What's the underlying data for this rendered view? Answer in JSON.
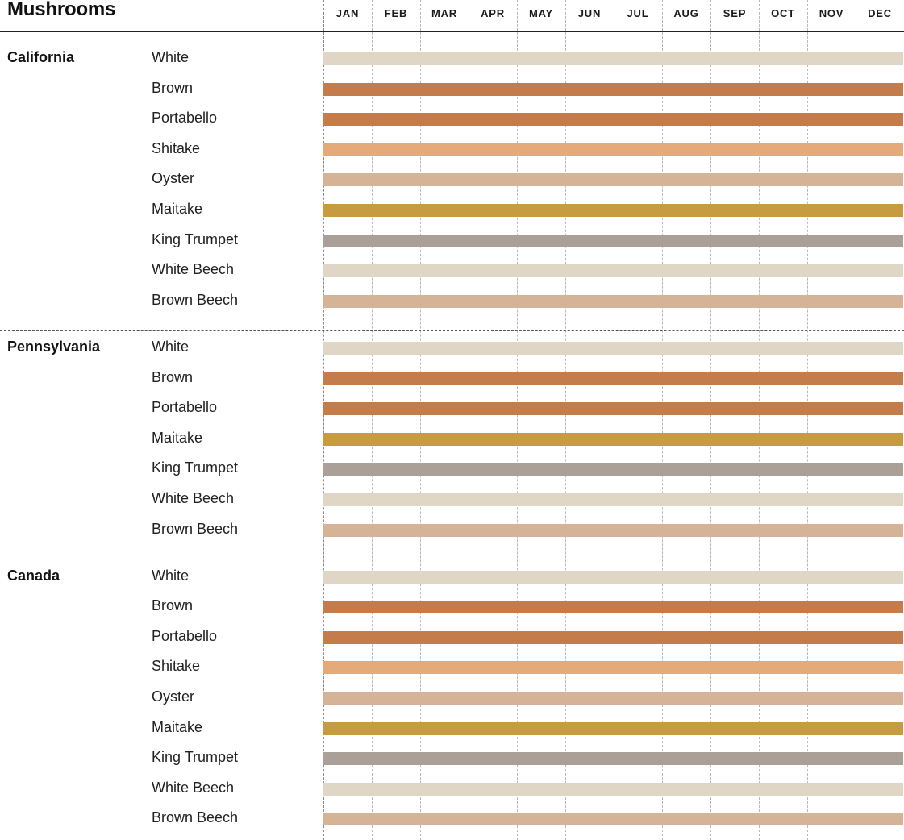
{
  "chart_data": {
    "type": "bar",
    "title": "Mushrooms",
    "months": [
      "JAN",
      "FEB",
      "MAR",
      "APR",
      "MAY",
      "JUN",
      "JUL",
      "AUG",
      "SEP",
      "OCT",
      "NOV",
      "DEC"
    ],
    "colors": {
      "White": "#e0d6c6",
      "Brown": "#c47c4a",
      "Portabello": "#c47c4a",
      "Shitake": "#e4aa7a",
      "Oyster": "#d5b397",
      "Maitake": "#c79b3f",
      "King Trumpet": "#aaa097",
      "White Beech": "#e0d6c6",
      "Brown Beech": "#d5b397"
    },
    "regions": [
      {
        "name": "California",
        "products": [
          {
            "name": "White",
            "start": "JAN",
            "end": "DEC"
          },
          {
            "name": "Brown",
            "start": "JAN",
            "end": "DEC"
          },
          {
            "name": "Portabello",
            "start": "JAN",
            "end": "DEC"
          },
          {
            "name": "Shitake",
            "start": "JAN",
            "end": "DEC"
          },
          {
            "name": "Oyster",
            "start": "JAN",
            "end": "DEC"
          },
          {
            "name": "Maitake",
            "start": "JAN",
            "end": "DEC"
          },
          {
            "name": "King Trumpet",
            "start": "JAN",
            "end": "DEC"
          },
          {
            "name": "White Beech",
            "start": "JAN",
            "end": "DEC"
          },
          {
            "name": "Brown Beech",
            "start": "JAN",
            "end": "DEC"
          }
        ]
      },
      {
        "name": "Pennsylvania",
        "products": [
          {
            "name": "White",
            "start": "JAN",
            "end": "DEC"
          },
          {
            "name": "Brown",
            "start": "JAN",
            "end": "DEC"
          },
          {
            "name": "Portabello",
            "start": "JAN",
            "end": "DEC"
          },
          {
            "name": "Maitake",
            "start": "JAN",
            "end": "DEC"
          },
          {
            "name": "King Trumpet",
            "start": "JAN",
            "end": "DEC"
          },
          {
            "name": "White Beech",
            "start": "JAN",
            "end": "DEC"
          },
          {
            "name": "Brown Beech",
            "start": "JAN",
            "end": "DEC"
          }
        ]
      },
      {
        "name": "Canada",
        "products": [
          {
            "name": "White",
            "start": "JAN",
            "end": "DEC"
          },
          {
            "name": "Brown",
            "start": "JAN",
            "end": "DEC"
          },
          {
            "name": "Portabello",
            "start": "JAN",
            "end": "DEC"
          },
          {
            "name": "Shitake",
            "start": "JAN",
            "end": "DEC"
          },
          {
            "name": "Oyster",
            "start": "JAN",
            "end": "DEC"
          },
          {
            "name": "Maitake",
            "start": "JAN",
            "end": "DEC"
          },
          {
            "name": "King Trumpet",
            "start": "JAN",
            "end": "DEC"
          },
          {
            "name": "White Beech",
            "start": "JAN",
            "end": "DEC"
          },
          {
            "name": "Brown Beech",
            "start": "JAN",
            "end": "DEC"
          }
        ]
      }
    ]
  }
}
